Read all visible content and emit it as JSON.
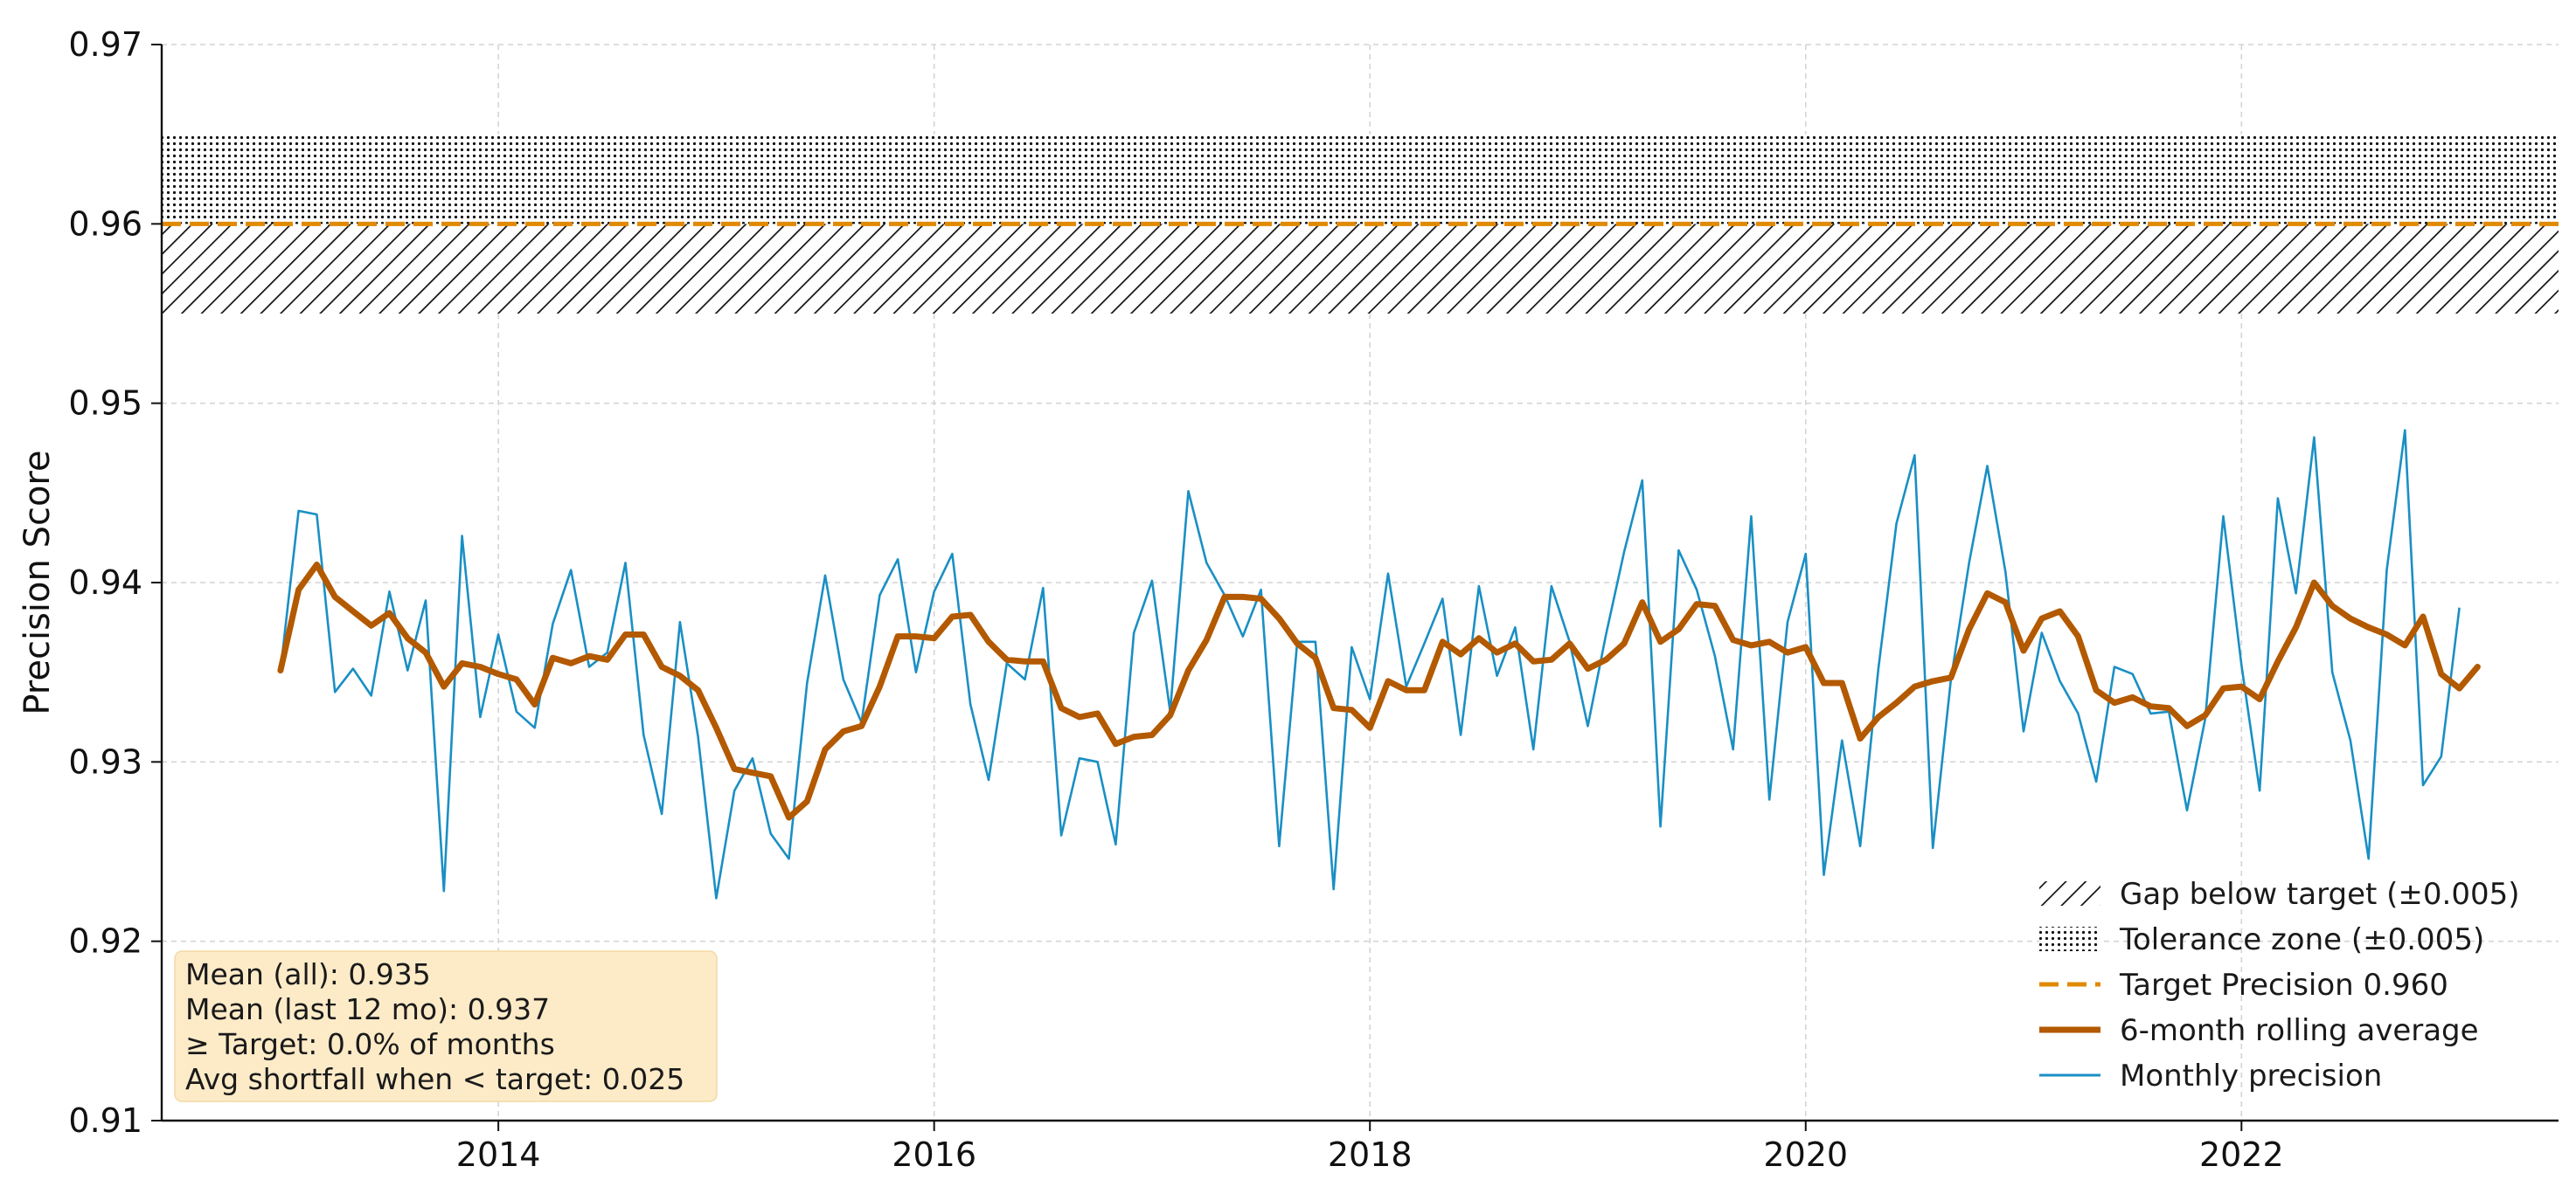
{
  "chart_data": {
    "type": "line",
    "title": "",
    "xlabel": "",
    "ylabel": "Precision Score",
    "xlim": [
      "2012-06-15",
      "2023-06-15"
    ],
    "ylim": [
      0.91,
      0.97
    ],
    "y_ticks": [
      "0.91",
      "0.92",
      "0.93",
      "0.94",
      "0.95",
      "0.96",
      "0.97"
    ],
    "x_ticks": [
      "2014",
      "2016",
      "2018",
      "2020",
      "2022"
    ],
    "grid": true,
    "legend_position": "lower-right",
    "target": 0.96,
    "tolerance": 0.005,
    "x_start": "2013-01",
    "x_end": "2023-01",
    "bands": [
      {
        "name": "Gap below target (±0.005)",
        "y0": 0.955,
        "y1": 0.96,
        "pattern": "hatch"
      },
      {
        "name": "Tolerance zone (±0.005)",
        "y0": 0.96,
        "y1": 0.965,
        "pattern": "dots"
      }
    ],
    "target_line": {
      "name": "Target Precision 0.960",
      "value": 0.96,
      "color": "#e08a00"
    },
    "series": [
      {
        "name": "Monthly precision",
        "color": "#1a8fc4",
        "values": [
          0.9351,
          0.944,
          0.9438,
          0.9339,
          0.9352,
          0.9337,
          0.9395,
          0.9351,
          0.939,
          0.9228,
          0.9426,
          0.9325,
          0.9371,
          0.9328,
          0.9319,
          0.9377,
          0.9407,
          0.9353,
          0.9361,
          0.9411,
          0.9315,
          0.9271,
          0.9378,
          0.9314,
          0.9224,
          0.9284,
          0.9302,
          0.926,
          0.9246,
          0.9344,
          0.9404,
          0.9346,
          0.9322,
          0.9393,
          0.9413,
          0.935,
          0.9395,
          0.9416,
          0.9332,
          0.929,
          0.9355,
          0.9346,
          0.9397,
          0.9259,
          0.9302,
          0.93,
          0.9254,
          0.9372,
          0.9401,
          0.9328,
          0.9451,
          0.9411,
          0.9393,
          0.937,
          0.9396,
          0.9253,
          0.9367,
          0.9367,
          0.9229,
          0.9364,
          0.9335,
          0.9405,
          0.9342,
          0.9366,
          0.9391,
          0.9315,
          0.9398,
          0.9348,
          0.9375,
          0.9307,
          0.9398,
          0.9367,
          0.932,
          0.9371,
          0.9417,
          0.9457,
          0.9264,
          0.9418,
          0.9396,
          0.9359,
          0.9307,
          0.9437,
          0.9279,
          0.9378,
          0.9416,
          0.9237,
          0.9312,
          0.9253,
          0.9352,
          0.9433,
          0.9471,
          0.9252,
          0.9346,
          0.9411,
          0.9465,
          0.9406,
          0.9317,
          0.9372,
          0.9345,
          0.9327,
          0.9289,
          0.9353,
          0.9349,
          0.9327,
          0.9328,
          0.9273,
          0.9324,
          0.9437,
          0.9354,
          0.9284,
          0.9447,
          0.9394,
          0.9481,
          0.935,
          0.9312,
          0.9246,
          0.9407,
          0.9485,
          0.9287,
          0.9303,
          0.9386
        ]
      },
      {
        "name": "6-month rolling average",
        "color": "#b35900",
        "values": [
          0.9351,
          0.9396,
          0.941,
          0.9392,
          0.9384,
          0.9376,
          0.9383,
          0.9369,
          0.9361,
          0.9342,
          0.9355,
          0.9353,
          0.9349,
          0.9346,
          0.9332,
          0.9358,
          0.9355,
          0.9359,
          0.9357,
          0.9371,
          0.9371,
          0.9353,
          0.9348,
          0.934,
          0.9319,
          0.9296,
          0.9294,
          0.9292,
          0.9269,
          0.9278,
          0.9307,
          0.9317,
          0.932,
          0.9342,
          0.937,
          0.937,
          0.9369,
          0.9381,
          0.9382,
          0.9367,
          0.9357,
          0.9356,
          0.9356,
          0.933,
          0.9325,
          0.9327,
          0.931,
          0.9314,
          0.9315,
          0.9326,
          0.9351,
          0.9368,
          0.9392,
          0.9392,
          0.9391,
          0.938,
          0.9366,
          0.9358,
          0.933,
          0.9329,
          0.9319,
          0.9345,
          0.934,
          0.934,
          0.9367,
          0.936,
          0.9369,
          0.9361,
          0.9366,
          0.9356,
          0.9357,
          0.9366,
          0.9352,
          0.9357,
          0.9366,
          0.9389,
          0.9367,
          0.9374,
          0.9388,
          0.9387,
          0.9368,
          0.9365,
          0.9367,
          0.9361,
          0.9364,
          0.9344,
          0.9344,
          0.9313,
          0.9325,
          0.9333,
          0.9342,
          0.9345,
          0.9347,
          0.9374,
          0.9394,
          0.9389,
          0.9362,
          0.938,
          0.9384,
          0.937,
          0.934,
          0.9333,
          0.9336,
          0.9331,
          0.933,
          0.932,
          0.9326,
          0.9341,
          0.9342,
          0.9335,
          0.9356,
          0.9375,
          0.94,
          0.9387,
          0.938,
          0.9375,
          0.9371,
          0.9365,
          0.9381,
          0.9349,
          0.9341,
          0.9353
        ]
      }
    ],
    "legend": [
      {
        "label": "Gap below target (±0.005)",
        "swatch": "hatch"
      },
      {
        "label": "Tolerance zone (±0.005)",
        "swatch": "dots"
      },
      {
        "label": "Target Precision 0.960",
        "swatch": "dashed"
      },
      {
        "label": "6-month rolling average",
        "swatch": "thick-line"
      },
      {
        "label": "Monthly precision",
        "swatch": "thin-line"
      }
    ],
    "stats_box": [
      "Mean (all): 0.935",
      "Mean (last 12 mo): 0.937",
      "≥ Target: 0.0% of months",
      "Avg shortfall when < target: 0.025"
    ],
    "colors": {
      "monthly": "#1a8fc4",
      "rolling": "#b35900",
      "target": "#e08a00",
      "stats_bg": "#fdebc8"
    }
  }
}
